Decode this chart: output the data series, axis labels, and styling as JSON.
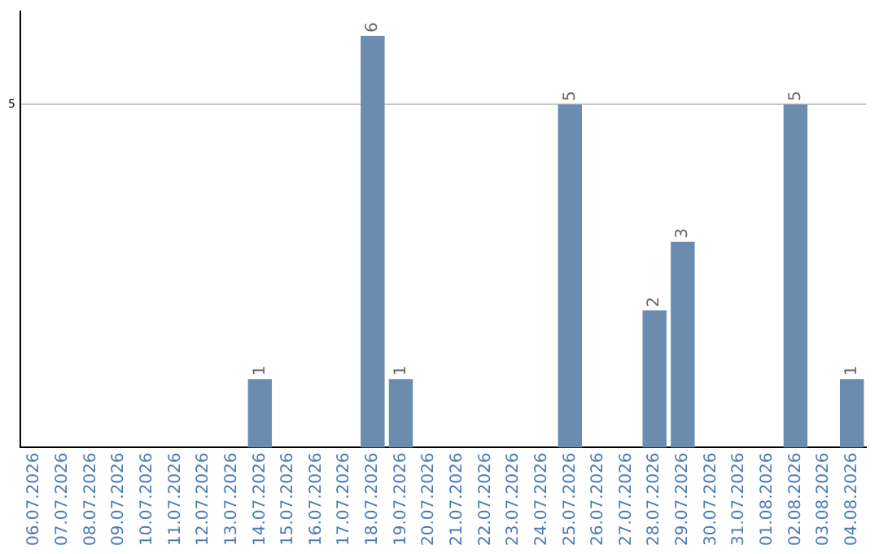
{
  "chart_data": {
    "type": "bar",
    "categories": [
      "06.07.2026",
      "07.07.2026",
      "08.07.2026",
      "09.07.2026",
      "10.07.2026",
      "11.07.2026",
      "12.07.2026",
      "13.07.2026",
      "14.07.2026",
      "15.07.2026",
      "16.07.2026",
      "17.07.2026",
      "18.07.2026",
      "19.07.2026",
      "20.07.2026",
      "21.07.2026",
      "22.07.2026",
      "23.07.2026",
      "24.07.2026",
      "25.07.2026",
      "26.07.2026",
      "27.07.2026",
      "28.07.2026",
      "29.07.2026",
      "30.07.2026",
      "31.07.2026",
      "01.08.2026",
      "02.08.2026",
      "03.08.2026",
      "04.08.2026"
    ],
    "values": [
      0,
      0,
      0,
      0,
      0,
      0,
      0,
      0,
      1,
      0,
      0,
      0,
      6,
      1,
      0,
      0,
      0,
      0,
      0,
      5,
      0,
      0,
      2,
      3,
      0,
      0,
      0,
      5,
      0,
      1
    ],
    "value_labels": [
      null,
      null,
      null,
      null,
      null,
      null,
      null,
      null,
      "1",
      null,
      null,
      null,
      "6",
      "1",
      null,
      null,
      null,
      null,
      null,
      "5",
      null,
      null,
      "2",
      "3",
      null,
      null,
      null,
      "5",
      null,
      "1"
    ],
    "color": "#6b8cae",
    "ylim": [
      0,
      6.35
    ],
    "yticks": [
      5
    ],
    "grid": "y",
    "legend": false
  }
}
